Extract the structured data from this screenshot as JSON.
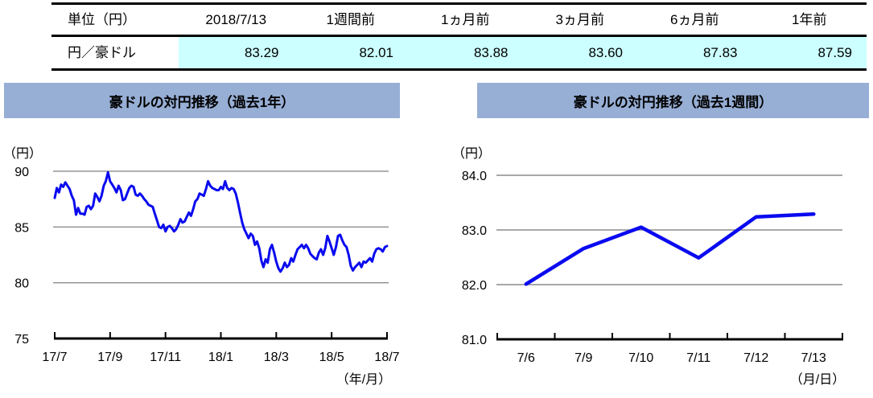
{
  "table": {
    "unit_header": "単位（円）",
    "row_label": "円／豪ドル",
    "columns": [
      {
        "header": "2018/7/13",
        "value": "83.29"
      },
      {
        "header": "1週間前",
        "value": "82.01"
      },
      {
        "header": "1ヵ月前",
        "value": "83.88"
      },
      {
        "header": "3ヵ月前",
        "value": "83.60"
      },
      {
        "header": "6ヵ月前",
        "value": "87.83"
      },
      {
        "header": "1年前",
        "value": "87.59"
      }
    ]
  },
  "colors": {
    "highlight": "#CCFFFF",
    "title_bar": "#97AED5",
    "line": "#0A0AF0",
    "gridline": "#8C8C8C",
    "axis": "#000000"
  },
  "chart_data": [
    {
      "type": "line",
      "title": "豪ドルの対円推移（過去1年）",
      "unit_label": "（円）",
      "x_axis_label": "（年/月）",
      "legend": "none",
      "grid": "horizontal",
      "ylim": [
        75,
        90
      ],
      "y_ticks": [
        "90",
        "85",
        "80",
        "75"
      ],
      "x_tick_labels": [
        "17/7",
        "17/9",
        "17/11",
        "18/1",
        "18/3",
        "18/5",
        "18/7"
      ],
      "x_range_note": "daily series 2017/7 to 2018/7, evenly spaced samples",
      "values": [
        87.6,
        88.5,
        88.1,
        88.8,
        88.6,
        89.0,
        88.7,
        88.4,
        87.8,
        87.4,
        86.1,
        86.7,
        86.2,
        86.2,
        86.1,
        86.8,
        86.9,
        86.6,
        86.9,
        88.0,
        87.7,
        87.3,
        87.8,
        88.7,
        89.1,
        89.9,
        89.1,
        88.8,
        88.5,
        88.1,
        88.7,
        88.3,
        87.4,
        87.5,
        88.0,
        88.5,
        88.7,
        88.6,
        87.9,
        87.8,
        88.0,
        87.8,
        87.5,
        87.3,
        87.0,
        86.9,
        86.8,
        86.2,
        85.6,
        85.0,
        84.9,
        85.2,
        84.6,
        85.0,
        85.1,
        84.9,
        84.6,
        84.8,
        85.2,
        85.7,
        85.4,
        85.5,
        85.9,
        86.3,
        86.0,
        86.6,
        87.3,
        87.5,
        88.0,
        87.9,
        87.8,
        88.4,
        89.1,
        88.7,
        88.5,
        88.4,
        88.3,
        88.3,
        88.6,
        88.4,
        89.1,
        88.5,
        88.3,
        88.5,
        88.4,
        88.0,
        87.2,
        86.3,
        85.4,
        84.8,
        84.4,
        84.0,
        84.4,
        84.2,
        83.4,
        83.7,
        83.1,
        82.0,
        81.4,
        82.1,
        81.8,
        83.0,
        83.4,
        82.7,
        81.9,
        81.3,
        81.0,
        81.3,
        81.8,
        81.4,
        81.6,
        82.2,
        81.9,
        82.5,
        83.0,
        83.2,
        83.4,
        83.1,
        83.4,
        83.1,
        82.6,
        82.4,
        82.2,
        82.1,
        82.7,
        83.0,
        82.5,
        83.1,
        84.2,
        83.7,
        83.1,
        82.5,
        83.2,
        84.2,
        84.3,
        83.8,
        83.4,
        83.2,
        82.5,
        81.5,
        81.1,
        81.4,
        81.6,
        81.8,
        81.4,
        81.9,
        81.8,
        82.0,
        82.2,
        81.9,
        82.6,
        83.0,
        83.1,
        83.0,
        82.8,
        83.2,
        83.3
      ]
    },
    {
      "type": "line",
      "title": "豪ドルの対円推移（過去1週間）",
      "unit_label": "（円）",
      "x_axis_label": "（月/日）",
      "legend": "none",
      "grid": "horizontal",
      "ylim": [
        81,
        84
      ],
      "y_ticks": [
        "84.0",
        "83.0",
        "82.0",
        "81.0"
      ],
      "categories": [
        "7/6",
        "7/9",
        "7/10",
        "7/11",
        "7/12",
        "7/13"
      ],
      "values": [
        82.01,
        82.66,
        83.05,
        82.49,
        83.24,
        83.29
      ]
    }
  ]
}
